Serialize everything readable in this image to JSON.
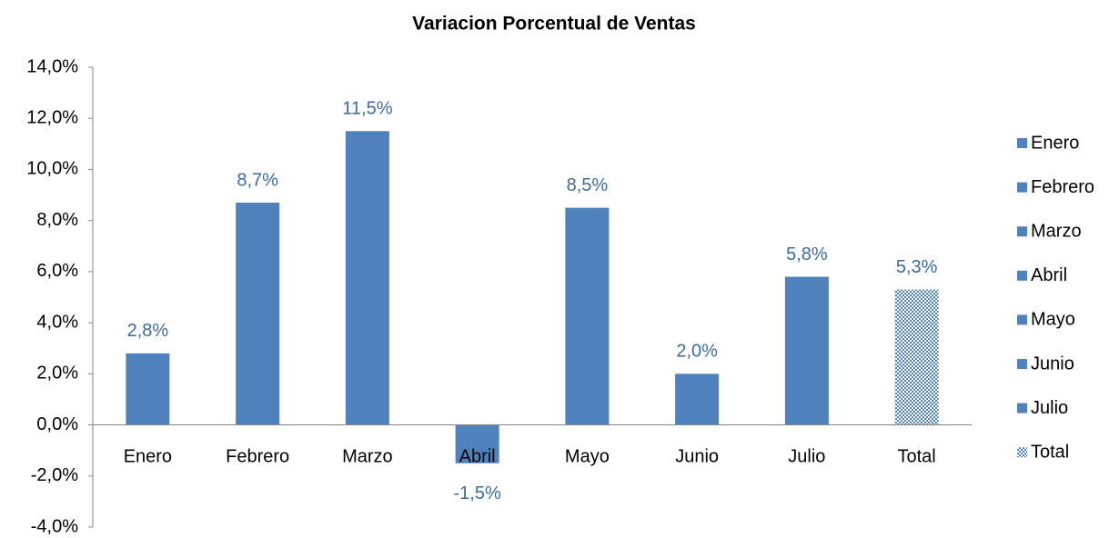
{
  "chart_data": {
    "type": "bar",
    "title": "Variacion Porcentual de Ventas",
    "categories": [
      "Enero",
      "Febrero",
      "Marzo",
      "Abril",
      "Mayo",
      "Junio",
      "Julio",
      "Total"
    ],
    "values": [
      2.8,
      8.7,
      11.5,
      -1.5,
      8.5,
      2.0,
      5.8,
      5.3
    ],
    "value_labels": [
      "2,8%",
      "8,7%",
      "11,5%",
      "-1,5%",
      "8,5%",
      "2,0%",
      "5,8%",
      "5,3%"
    ],
    "colors": [
      "#4f81bd",
      "#4f81bd",
      "#4f81bd",
      "#4f81bd",
      "#4f81bd",
      "#4f81bd",
      "#4f81bd",
      "#4f81bd"
    ],
    "patterned": [
      false,
      false,
      false,
      false,
      false,
      false,
      false,
      true
    ],
    "ylim": [
      -4,
      14
    ],
    "yticks": [
      {
        "value": -4,
        "label": "-4,0%"
      },
      {
        "value": -2,
        "label": "-2,0%"
      },
      {
        "value": 0,
        "label": "0,0%"
      },
      {
        "value": 2,
        "label": "2,0%"
      },
      {
        "value": 4,
        "label": "4,0%"
      },
      {
        "value": 6,
        "label": "6,0%"
      },
      {
        "value": 8,
        "label": "8,0%"
      },
      {
        "value": 10,
        "label": "10,0%"
      },
      {
        "value": 12,
        "label": "12,0%"
      },
      {
        "value": 14,
        "label": "14,0%"
      }
    ],
    "grid": false,
    "legend": "right"
  }
}
